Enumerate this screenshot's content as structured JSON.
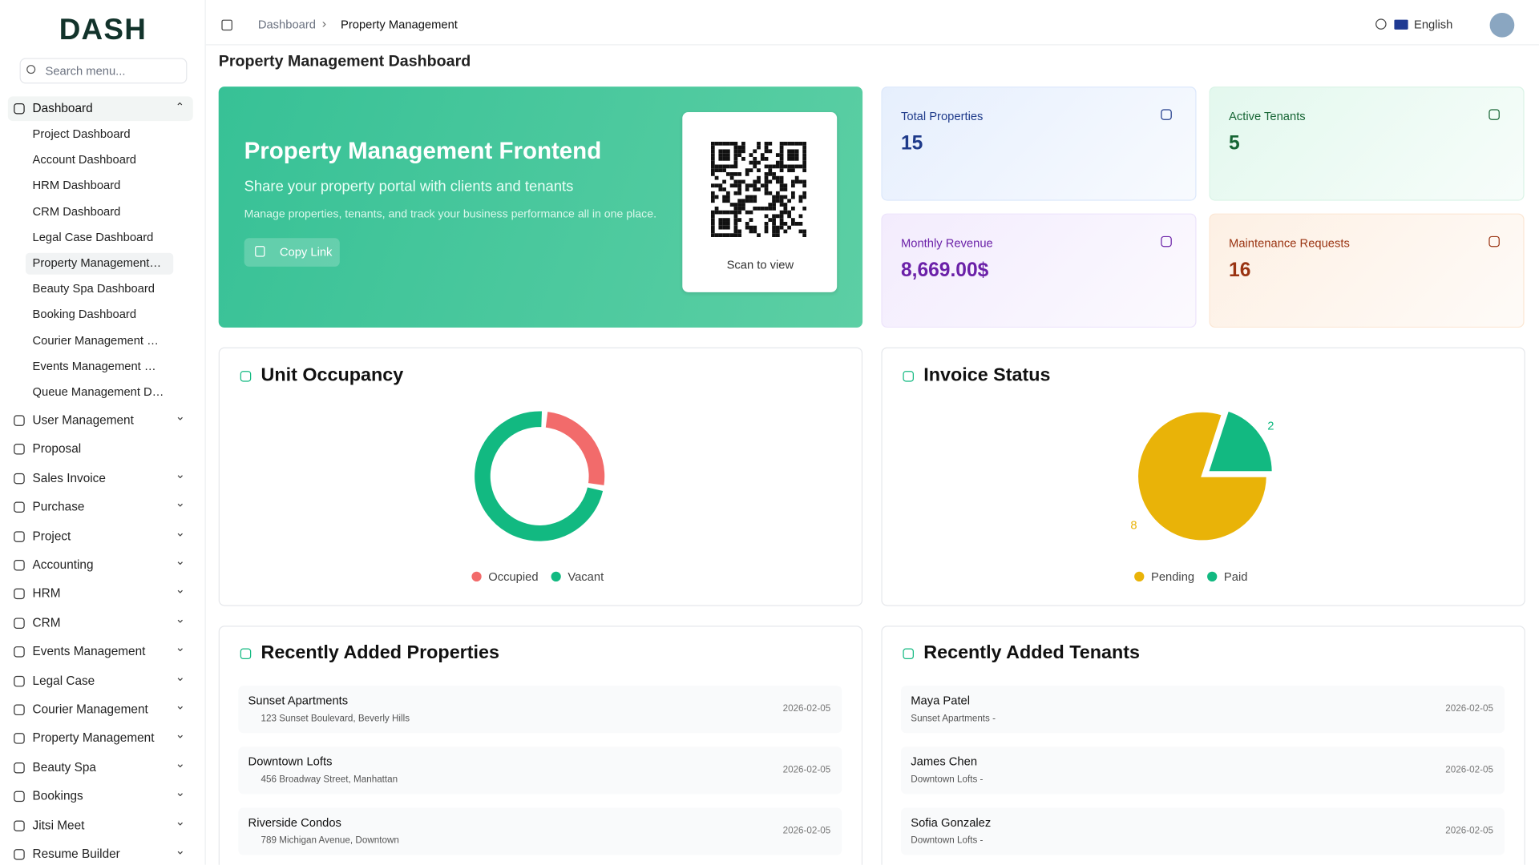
{
  "sidebar": {
    "logo": "DASH",
    "search_placeholder": "Search menu...",
    "dashboard": {
      "label": "Dashboard",
      "children": [
        "Project Dashboard",
        "Account Dashboard",
        "HRM Dashboard",
        "CRM Dashboard",
        "Legal Case Dashboard",
        "Property Management Dashboard",
        "Beauty Spa Dashboard",
        "Booking Dashboard",
        "Courier Management Dashboard",
        "Events Management Dashboard",
        "Queue Management Dashboard"
      ]
    },
    "menu": [
      "User Management",
      "Proposal",
      "Sales Invoice",
      "Purchase",
      "Project",
      "Accounting",
      "HRM",
      "CRM",
      "Events Management",
      "Legal Case",
      "Courier Management",
      "Property Management",
      "Beauty Spa",
      "Bookings",
      "Jitsi Meet",
      "Resume Builder"
    ]
  },
  "header": {
    "breadcrumb": [
      "Dashboard",
      "Property Management"
    ],
    "language": "English"
  },
  "page_title": "Property Management Dashboard",
  "hero": {
    "title": "Property Management Frontend",
    "subtitle": "Share your property portal with clients and tenants",
    "description": "Manage properties, tenants, and track your business performance all in one place.",
    "button": "Copy Link",
    "qr_caption": "Scan to view"
  },
  "stats": [
    {
      "label": "Total Properties",
      "value": 15
    },
    {
      "label": "Active Tenants",
      "value": 5
    },
    {
      "label": "Monthly Revenue",
      "value": "8,669.00$"
    },
    {
      "label": "Maintenance Requests",
      "value": 16
    }
  ],
  "chart_data": [
    {
      "type": "donut",
      "title": "Unit Occupancy",
      "categories": [
        "Occupied",
        "Vacant"
      ],
      "values": [
        4,
        11
      ],
      "colors": [
        "#f26b6b",
        "#12b981"
      ]
    },
    {
      "type": "pie",
      "title": "Invoice Status",
      "categories": [
        "Pending",
        "Paid"
      ],
      "values": [
        8,
        2
      ],
      "colors": [
        "#e9b308",
        "#12b981"
      ],
      "data_labels": true
    }
  ],
  "properties": {
    "title": "Recently Added Properties",
    "items": [
      {
        "name": "Sunset Apartments",
        "detail": "123 Sunset Boulevard, Beverly Hills",
        "date": "2026-02-05"
      },
      {
        "name": "Downtown Lofts",
        "detail": "456 Broadway Street, Manhattan",
        "date": "2026-02-05"
      },
      {
        "name": "Riverside Condos",
        "detail": "789 Michigan Avenue, Downtown",
        "date": "2026-02-05"
      }
    ]
  },
  "tenants": {
    "title": "Recently Added Tenants",
    "items": [
      {
        "name": "Maya Patel",
        "detail": "Sunset Apartments -",
        "date": "2026-02-05"
      },
      {
        "name": "James Chen",
        "detail": "Downtown Lofts -",
        "date": "2026-02-05"
      },
      {
        "name": "Sofia Gonzalez",
        "detail": "Downtown Lofts -",
        "date": "2026-02-05"
      }
    ]
  }
}
